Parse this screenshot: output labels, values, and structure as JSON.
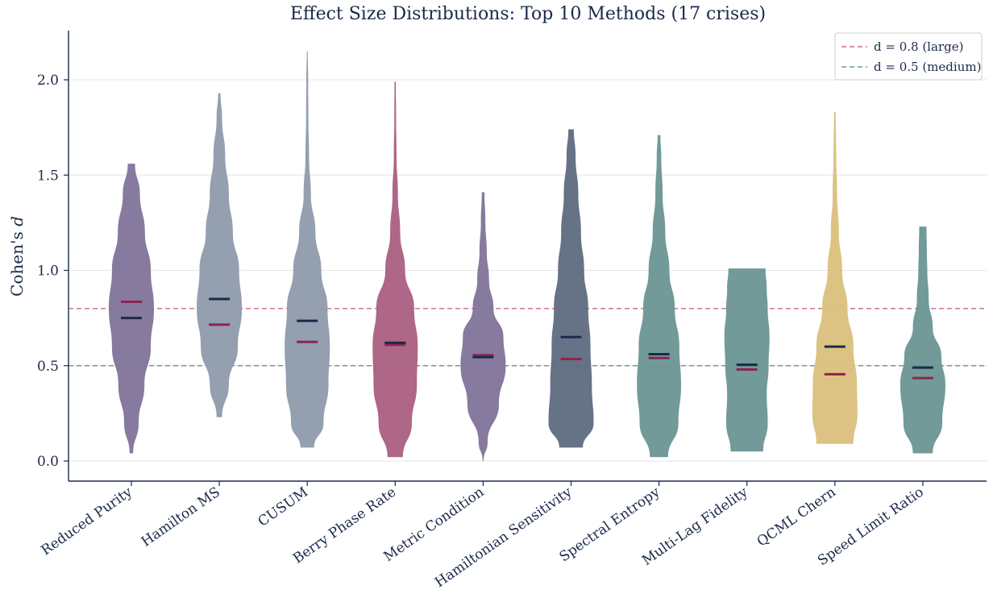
{
  "chart_data": {
    "type": "violin",
    "title": "Effect Size Distributions: Top 10 Methods (17 crises)",
    "xlabel": "",
    "ylabel": "Cohen's d",
    "ylim": [
      -0.1,
      2.27
    ],
    "yticks": [
      0.0,
      0.5,
      1.0,
      1.5,
      2.0
    ],
    "ytick_labels": [
      "0.0",
      "0.5",
      "1.0",
      "1.5",
      "2.0"
    ],
    "grid": "horizontal",
    "legend": {
      "position": "top-right",
      "entries": [
        {
          "label": "d = 0.8 (large)",
          "value": 0.8,
          "color": "#c56b84",
          "style": "dashed"
        },
        {
          "label": "d = 0.5 (medium)",
          "value": 0.5,
          "color": "#6c9c96",
          "style": "dashed"
        }
      ]
    },
    "methods": [
      {
        "name": "Reduced Purity",
        "min": 0.04,
        "max": 1.56,
        "mean": 0.835,
        "median": 0.75,
        "color": "#7f7399",
        "shape": [
          [
            0.04,
            0.08
          ],
          [
            0.2,
            0.32
          ],
          [
            0.4,
            0.58
          ],
          [
            0.6,
            0.86
          ],
          [
            0.8,
            1.0
          ],
          [
            1.0,
            0.86
          ],
          [
            1.2,
            0.6
          ],
          [
            1.4,
            0.38
          ],
          [
            1.56,
            0.16
          ]
        ]
      },
      {
        "name": "Hamilton MS",
        "min": 0.23,
        "max": 1.93,
        "mean": 0.715,
        "median": 0.85,
        "color": "#8e9aab",
        "shape": [
          [
            0.23,
            0.12
          ],
          [
            0.4,
            0.42
          ],
          [
            0.6,
            0.82
          ],
          [
            0.8,
            1.0
          ],
          [
            1.0,
            0.88
          ],
          [
            1.2,
            0.6
          ],
          [
            1.4,
            0.42
          ],
          [
            1.6,
            0.26
          ],
          [
            1.8,
            0.12
          ],
          [
            1.93,
            0.05
          ]
        ]
      },
      {
        "name": "CUSUM",
        "min": 0.07,
        "max": 2.15,
        "mean": 0.625,
        "median": 0.735,
        "color": "#8e9aab",
        "shape": [
          [
            0.07,
            0.3
          ],
          [
            0.2,
            0.72
          ],
          [
            0.4,
            0.94
          ],
          [
            0.6,
            1.0
          ],
          [
            0.8,
            0.9
          ],
          [
            1.0,
            0.62
          ],
          [
            1.2,
            0.36
          ],
          [
            1.4,
            0.16
          ],
          [
            1.6,
            0.08
          ],
          [
            1.8,
            0.05
          ],
          [
            2.0,
            0.04
          ],
          [
            2.15,
            0.02
          ]
        ]
      },
      {
        "name": "Berry Phase Rate",
        "min": 0.02,
        "max": 1.99,
        "mean": 0.61,
        "median": 0.62,
        "color": "#aa5f80",
        "shape": [
          [
            0.02,
            0.34
          ],
          [
            0.2,
            0.74
          ],
          [
            0.4,
            0.96
          ],
          [
            0.6,
            1.0
          ],
          [
            0.8,
            0.84
          ],
          [
            1.0,
            0.44
          ],
          [
            1.2,
            0.22
          ],
          [
            1.4,
            0.12
          ],
          [
            1.6,
            0.06
          ],
          [
            1.8,
            0.04
          ],
          [
            1.99,
            0.03
          ]
        ]
      },
      {
        "name": "Metric Condition",
        "min": 0.0,
        "max": 1.41,
        "mean": 0.555,
        "median": 0.545,
        "color": "#7f7399",
        "shape": [
          [
            0.0,
            0.02
          ],
          [
            0.1,
            0.2
          ],
          [
            0.3,
            0.7
          ],
          [
            0.5,
            1.0
          ],
          [
            0.65,
            0.9
          ],
          [
            0.8,
            0.46
          ],
          [
            0.95,
            0.26
          ],
          [
            1.1,
            0.16
          ],
          [
            1.25,
            0.1
          ],
          [
            1.41,
            0.06
          ]
        ]
      },
      {
        "name": "Hamiltonian Sensitivity",
        "min": 0.07,
        "max": 1.74,
        "mean": 0.535,
        "median": 0.65,
        "color": "#5e6a80",
        "shape": [
          [
            0.07,
            0.52
          ],
          [
            0.2,
            1.0
          ],
          [
            0.4,
            0.92
          ],
          [
            0.6,
            0.86
          ],
          [
            0.8,
            0.76
          ],
          [
            1.0,
            0.58
          ],
          [
            1.2,
            0.44
          ],
          [
            1.4,
            0.32
          ],
          [
            1.6,
            0.2
          ],
          [
            1.74,
            0.12
          ]
        ]
      },
      {
        "name": "Spectral Entropy",
        "min": 0.02,
        "max": 1.71,
        "mean": 0.54,
        "median": 0.56,
        "color": "#699593",
        "shape": [
          [
            0.02,
            0.4
          ],
          [
            0.2,
            0.86
          ],
          [
            0.4,
            0.98
          ],
          [
            0.6,
            0.9
          ],
          [
            0.8,
            0.7
          ],
          [
            1.0,
            0.46
          ],
          [
            1.2,
            0.28
          ],
          [
            1.4,
            0.16
          ],
          [
            1.6,
            0.1
          ],
          [
            1.71,
            0.06
          ]
        ]
      },
      {
        "name": "Multi-Lag Fidelity",
        "min": 0.05,
        "max": 1.01,
        "mean": 0.48,
        "median": 0.505,
        "color": "#699593",
        "shape": [
          [
            0.05,
            0.72
          ],
          [
            0.2,
            0.92
          ],
          [
            0.35,
            0.88
          ],
          [
            0.5,
            0.96
          ],
          [
            0.65,
            1.0
          ],
          [
            0.8,
            0.92
          ],
          [
            0.9,
            0.88
          ],
          [
            1.01,
            0.82
          ]
        ]
      },
      {
        "name": "QCML Chern",
        "min": 0.09,
        "max": 1.83,
        "mean": 0.455,
        "median": 0.6,
        "color": "#dac07c",
        "shape": [
          [
            0.09,
            0.82
          ],
          [
            0.25,
            1.0
          ],
          [
            0.4,
            0.98
          ],
          [
            0.6,
            0.82
          ],
          [
            0.8,
            0.56
          ],
          [
            1.0,
            0.32
          ],
          [
            1.2,
            0.18
          ],
          [
            1.4,
            0.1
          ],
          [
            1.6,
            0.06
          ],
          [
            1.83,
            0.04
          ]
        ]
      },
      {
        "name": "Speed Limit Ratio",
        "min": 0.04,
        "max": 1.23,
        "mean": 0.435,
        "median": 0.49,
        "color": "#699593",
        "shape": [
          [
            0.04,
            0.44
          ],
          [
            0.2,
            0.86
          ],
          [
            0.4,
            1.0
          ],
          [
            0.55,
            0.82
          ],
          [
            0.7,
            0.44
          ],
          [
            0.85,
            0.26
          ],
          [
            1.0,
            0.2
          ],
          [
            1.1,
            0.18
          ],
          [
            1.23,
            0.16
          ]
        ]
      }
    ],
    "mean_color": "#8e2450",
    "median_color": "#1b2a4a"
  }
}
